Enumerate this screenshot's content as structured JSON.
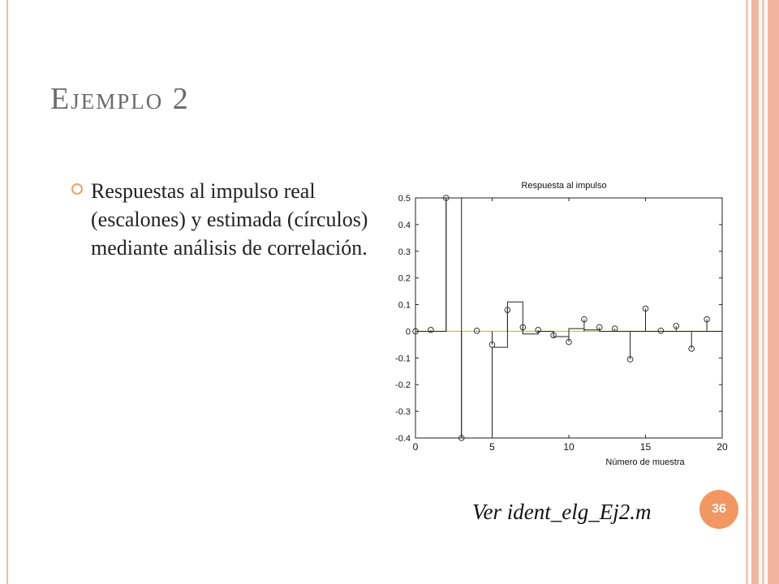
{
  "slide": {
    "title": "Ejemplo 2",
    "bullet": "Respuestas al impulso real (escalones) y estimada (círculos) mediante análisis de correlación.",
    "caption": "Ver ident_elg_Ej2.m",
    "page_number": "36"
  },
  "colors": {
    "accent": "#f29662",
    "frame": "#f2b9a6",
    "zero_line": "#c8c800"
  },
  "chart_data": {
    "type": "line",
    "title": "Respuesta al impulso",
    "xlabel": "Número de muestra",
    "ylabel": "",
    "xlim": [
      0,
      20
    ],
    "ylim": [
      -0.4,
      0.5
    ],
    "x_ticks": [
      "0",
      "5",
      "10",
      "15",
      "20"
    ],
    "y_ticks": [
      "0.5",
      "0.4",
      "0.3",
      "0.2",
      "0.1",
      "0",
      "-0.1",
      "-0.2",
      "-0.3",
      "-0.4"
    ],
    "grid": false,
    "series": [
      {
        "style": "stairs",
        "x": [
          0,
          1,
          2,
          3,
          4,
          5,
          6,
          7,
          8,
          9,
          10,
          11,
          12,
          13,
          14,
          15,
          16,
          17,
          18,
          19,
          20
        ],
        "values": [
          0,
          0,
          0.5,
          -0.4,
          -0.4,
          -0.06,
          0.11,
          -0.01,
          0,
          -0.02,
          0.01,
          0.005,
          0,
          0,
          0,
          0,
          0,
          0,
          0,
          0,
          0
        ]
      },
      {
        "style": "stem-circles",
        "x": [
          0,
          1,
          2,
          3,
          4,
          5,
          6,
          7,
          8,
          9,
          10,
          11,
          12,
          13,
          14,
          15,
          16,
          17,
          18,
          19
        ],
        "values": [
          0,
          0.005,
          0.5,
          -0.4,
          0.002,
          -0.05,
          0.08,
          0.015,
          0.005,
          -0.015,
          -0.04,
          0.045,
          0.015,
          0.01,
          -0.105,
          0.085,
          0.002,
          0.02,
          -0.065,
          0.045
        ]
      }
    ]
  }
}
